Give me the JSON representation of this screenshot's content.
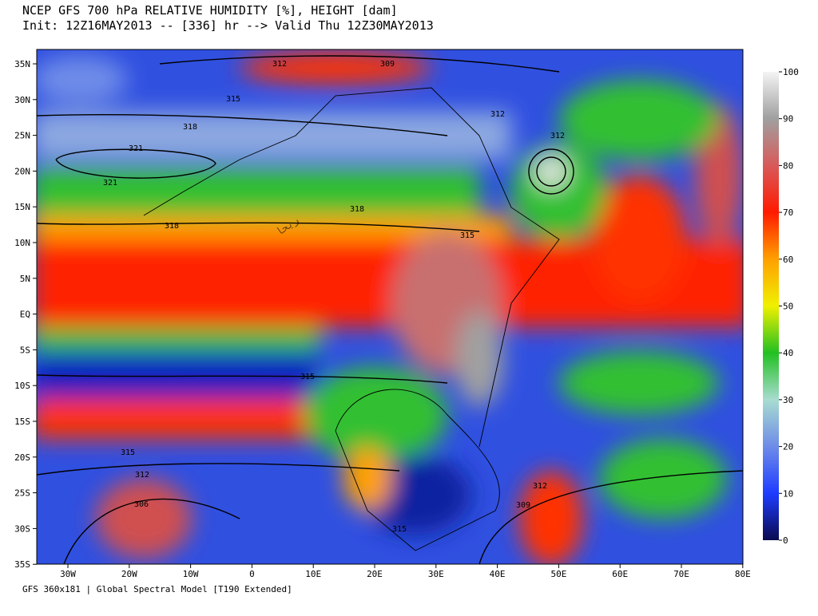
{
  "header": {
    "title": "NCEP GFS 700 hPa RELATIVE HUMIDITY [%], HEIGHT [dam]",
    "subtitle": "Init: 12Z16MAY2013 -- [336] hr --> Valid Thu 12Z30MAY2013"
  },
  "map": {
    "lon_ticks": [
      "30W",
      "20W",
      "10W",
      "0",
      "10E",
      "20E",
      "30E",
      "40E",
      "50E",
      "60E",
      "70E",
      "80E"
    ],
    "lat_ticks": [
      "35N",
      "30N",
      "25N",
      "20N",
      "15N",
      "10N",
      "5N",
      "EQ",
      "5S",
      "10S",
      "15S",
      "20S",
      "25S",
      "30S",
      "35S"
    ],
    "contour_labels": [
      "312",
      "309",
      "315",
      "312",
      "318",
      "321",
      "321",
      "318",
      "318",
      "315",
      "312",
      "315",
      "315",
      "312",
      "306",
      "312",
      "309",
      "315"
    ]
  },
  "colorbar": {
    "ticks": [
      0,
      10,
      20,
      30,
      40,
      50,
      60,
      70,
      80,
      90,
      100
    ]
  },
  "footer": "GFS 360x181 | Global Spectral Model [T190 Extended]"
}
